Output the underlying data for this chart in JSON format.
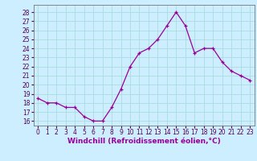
{
  "x": [
    0,
    1,
    2,
    3,
    4,
    5,
    6,
    7,
    8,
    9,
    10,
    11,
    12,
    13,
    14,
    15,
    16,
    17,
    18,
    19,
    20,
    21,
    22,
    23
  ],
  "y": [
    18.5,
    18.0,
    18.0,
    17.5,
    17.5,
    16.5,
    16.0,
    16.0,
    17.5,
    19.5,
    22.0,
    23.5,
    24.0,
    25.0,
    26.5,
    28.0,
    26.5,
    23.5,
    24.0,
    24.0,
    22.5,
    21.5,
    21.0,
    20.5
  ],
  "line_color": "#990099",
  "marker": "+",
  "marker_size": 3,
  "bg_color": "#cceeff",
  "grid_color": "#aadddd",
  "xlabel": "Windchill (Refroidissement éolien,°C)",
  "ylabel_ticks": [
    16,
    17,
    18,
    19,
    20,
    21,
    22,
    23,
    24,
    25,
    26,
    27,
    28
  ],
  "xlim": [
    -0.5,
    23.5
  ],
  "ylim": [
    15.5,
    28.8
  ],
  "tick_fontsize": 5.5,
  "label_fontsize": 6.5
}
